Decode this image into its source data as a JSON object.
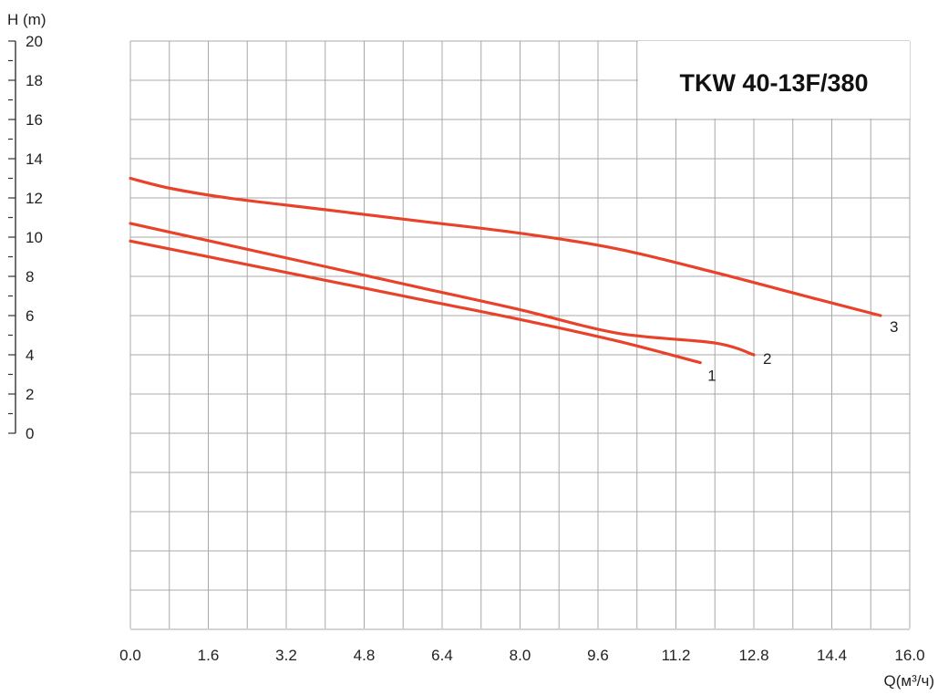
{
  "chart_data": {
    "type": "line",
    "title": "TKW 40-13F/380",
    "xlabel": "Q(м³/ч)",
    "ylabel": "H (m)",
    "xlim": [
      0,
      16
    ],
    "ylim": [
      0,
      20
    ],
    "x_ticks": [
      "0.0",
      "1.6",
      "3.2",
      "4.8",
      "6.4",
      "8.0",
      "9.6",
      "11.2",
      "12.8",
      "14.4",
      "16.0"
    ],
    "y_ticks": [
      "0",
      "2",
      "4",
      "6",
      "8",
      "10",
      "12",
      "14",
      "16",
      "18",
      "20"
    ],
    "grid": true,
    "line_color": "#e8432a",
    "series": [
      {
        "label": "1",
        "x": [
          0,
          2.0,
          4.0,
          6.0,
          8.0,
          10.0,
          11.7
        ],
        "y": [
          9.8,
          8.8,
          7.8,
          6.8,
          5.8,
          4.7,
          3.6
        ]
      },
      {
        "label": "2",
        "x": [
          0,
          2.0,
          4.0,
          6.0,
          8.0,
          10.0,
          12.0,
          12.8
        ],
        "y": [
          10.7,
          9.6,
          8.5,
          7.4,
          6.3,
          5.1,
          4.6,
          4.0
        ]
      },
      {
        "label": "3",
        "x": [
          0,
          0.8,
          2.0,
          4.0,
          6.0,
          8.0,
          10.0,
          12.0,
          14.0,
          15.4
        ],
        "y": [
          13.0,
          12.5,
          12.0,
          11.4,
          10.8,
          10.2,
          9.4,
          8.2,
          6.9,
          6.0
        ]
      }
    ]
  }
}
